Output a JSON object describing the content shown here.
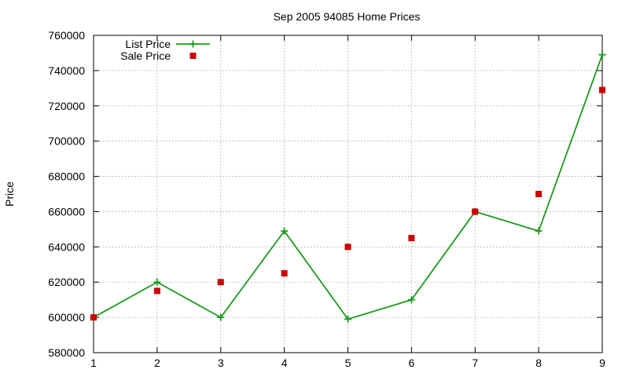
{
  "chart_data": {
    "type": "line",
    "title": "Sep 2005 94085 Home Prices",
    "xlabel": "",
    "ylabel": "Price",
    "x": [
      1,
      2,
      3,
      4,
      5,
      6,
      7,
      8,
      9
    ],
    "xlim": [
      1,
      9
    ],
    "ylim": [
      580000,
      760000
    ],
    "xticks": [
      "1",
      "2",
      "3",
      "4",
      "5",
      "6",
      "7",
      "8",
      "9"
    ],
    "yticks": [
      "580000",
      "600000",
      "620000",
      "640000",
      "660000",
      "680000",
      "700000",
      "720000",
      "740000",
      "760000"
    ],
    "grid": true,
    "legend_position": "top-left",
    "series": [
      {
        "name": "List Price",
        "style": "line-with-plus-markers",
        "color": "#1a9a1a",
        "values": [
          600000,
          620000,
          600000,
          649000,
          599000,
          610000,
          660000,
          649000,
          749000
        ]
      },
      {
        "name": "Sale Price",
        "style": "square-markers",
        "color": "#cc0000",
        "values": [
          600000,
          615000,
          620000,
          625000,
          640000,
          645000,
          660000,
          670000,
          729000
        ]
      }
    ]
  }
}
